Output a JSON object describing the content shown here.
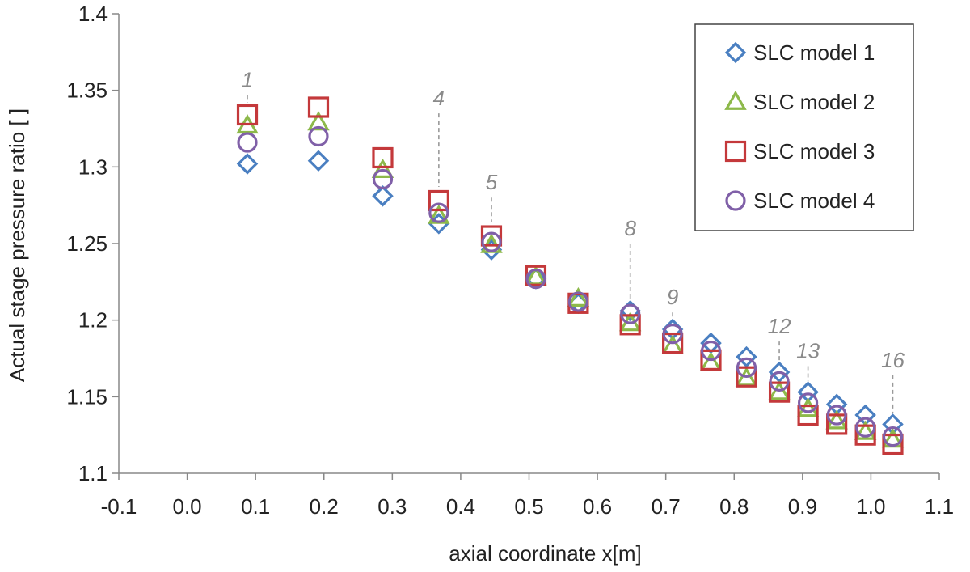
{
  "chart_data": {
    "type": "scatter",
    "title": "",
    "xlabel": "axial coordinate x[m]",
    "ylabel": "Actual stage pressure ratio [ ]",
    "xlim": [
      -0.1,
      1.1
    ],
    "ylim": [
      1.1,
      1.4
    ],
    "x_ticks": [
      "-0.1",
      "0.0",
      "0.1",
      "0.2",
      "0.3",
      "0.4",
      "0.5",
      "0.6",
      "0.7",
      "0.8",
      "0.9",
      "1.0",
      "1.1"
    ],
    "y_ticks": [
      "1.1",
      "1.15",
      "1.2",
      "1.25",
      "1.3",
      "1.35",
      "1.4"
    ],
    "grid": false,
    "legend_position": "top-right",
    "x": [
      0.088,
      0.192,
      0.286,
      0.368,
      0.445,
      0.51,
      0.572,
      0.648,
      0.71,
      0.766,
      0.818,
      0.866,
      0.908,
      0.95,
      0.992,
      1.032
    ],
    "series": [
      {
        "name": "SLC model 1",
        "marker": "diamond",
        "color": "#4a7fc1",
        "values": [
          1.302,
          1.304,
          1.281,
          1.263,
          1.246,
          1.227,
          1.211,
          1.206,
          1.194,
          1.185,
          1.176,
          1.166,
          1.153,
          1.145,
          1.138,
          1.132
        ]
      },
      {
        "name": "SLC model 2",
        "marker": "triangle",
        "color": "#8db94a",
        "values": [
          1.327,
          1.329,
          1.298,
          1.268,
          1.249,
          1.228,
          1.214,
          1.198,
          1.183,
          1.172,
          1.162,
          1.153,
          1.142,
          1.134,
          1.127,
          1.122
        ]
      },
      {
        "name": "SLC model 3",
        "marker": "square",
        "color": "#c4393b",
        "values": [
          1.334,
          1.339,
          1.306,
          1.278,
          1.255,
          1.229,
          1.211,
          1.197,
          1.185,
          1.174,
          1.163,
          1.153,
          1.138,
          1.132,
          1.125,
          1.119
        ]
      },
      {
        "name": "SLC model 4",
        "marker": "circle",
        "color": "#8060a8",
        "values": [
          1.316,
          1.32,
          1.292,
          1.27,
          1.251,
          1.227,
          1.212,
          1.204,
          1.191,
          1.18,
          1.169,
          1.16,
          1.146,
          1.138,
          1.13,
          1.124
        ]
      }
    ],
    "annotations": [
      {
        "label": "1",
        "x": 0.088,
        "y_top": 1.342,
        "y_bottom": 1.347
      },
      {
        "label": "4",
        "x": 0.368,
        "y_top": 1.287,
        "y_bottom": 1.335
      },
      {
        "label": "5",
        "x": 0.445,
        "y_top": 1.264,
        "y_bottom": 1.28
      },
      {
        "label": "8",
        "x": 0.648,
        "y_top": 1.213,
        "y_bottom": 1.25
      },
      {
        "label": "9",
        "x": 0.71,
        "y_top": 1.202,
        "y_bottom": 1.205
      },
      {
        "label": "12",
        "x": 0.866,
        "y_top": 1.173,
        "y_bottom": 1.186
      },
      {
        "label": "13",
        "x": 0.908,
        "y_top": 1.16,
        "y_bottom": 1.17
      },
      {
        "label": "16",
        "x": 1.032,
        "y_top": 1.139,
        "y_bottom": 1.164
      }
    ]
  }
}
